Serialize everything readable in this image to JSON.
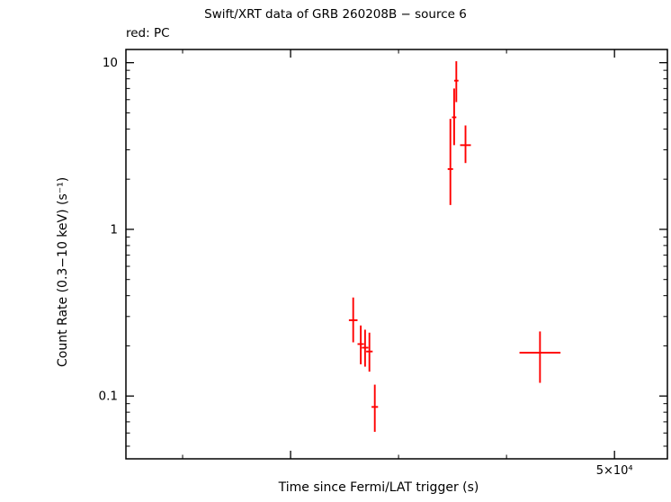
{
  "page": {
    "background": "#ffffff"
  },
  "chart_data": {
    "type": "scatter",
    "title": "Swift/XRT data of GRB 260208B − source 6",
    "subtitle": "red: PC",
    "xlabel": "Time since Fermi/LAT trigger (s)",
    "ylabel": "Count Rate (0.3−10 keV) (s⁻¹)",
    "xscale": "linear",
    "yscale": "log",
    "xlim": [
      4750,
      54900
    ],
    "ylim": [
      0.042,
      12
    ],
    "grid": false,
    "legend_position": "none",
    "axis_color": "#000000",
    "text_color": "#000000",
    "x_major_ticks": [
      {
        "value": 20000,
        "label": ""
      },
      {
        "value": 50000,
        "label": "5×10⁴"
      }
    ],
    "x_minor_tick_step": 10000,
    "y_major_ticks": [
      {
        "value": 0.1,
        "label": "0.1"
      },
      {
        "value": 1,
        "label": "1"
      },
      {
        "value": 10,
        "label": "10"
      }
    ],
    "series": [
      {
        "name": "PC",
        "color": "#ff0000",
        "marker": "cross-errorbar",
        "points": [
          {
            "x": 25800,
            "x_err": 400,
            "y": 0.285,
            "y_err_up": 0.105,
            "y_err_down": 0.075
          },
          {
            "x": 26500,
            "x_err": 300,
            "y": 0.205,
            "y_err_up": 0.06,
            "y_err_down": 0.05
          },
          {
            "x": 26900,
            "x_err": 300,
            "y": 0.195,
            "y_err_up": 0.055,
            "y_err_down": 0.045
          },
          {
            "x": 27300,
            "x_err": 300,
            "y": 0.185,
            "y_err_up": 0.055,
            "y_err_down": 0.045
          },
          {
            "x": 27800,
            "x_err": 300,
            "y": 0.086,
            "y_err_up": 0.031,
            "y_err_down": 0.025
          },
          {
            "x": 34800,
            "x_err": 250,
            "y": 2.3,
            "y_err_up": 2.3,
            "y_err_down": 0.9
          },
          {
            "x": 35150,
            "x_err": 200,
            "y": 4.7,
            "y_err_up": 2.3,
            "y_err_down": 1.5
          },
          {
            "x": 35350,
            "x_err": 200,
            "y": 7.8,
            "y_err_up": 2.4,
            "y_err_down": 2.0
          },
          {
            "x": 36200,
            "x_err": 500,
            "y": 3.2,
            "y_err_up": 1.0,
            "y_err_down": 0.7
          },
          {
            "x": 43100,
            "x_err": 1900,
            "y": 0.182,
            "y_err_up": 0.062,
            "y_err_down": 0.062
          }
        ]
      }
    ]
  }
}
